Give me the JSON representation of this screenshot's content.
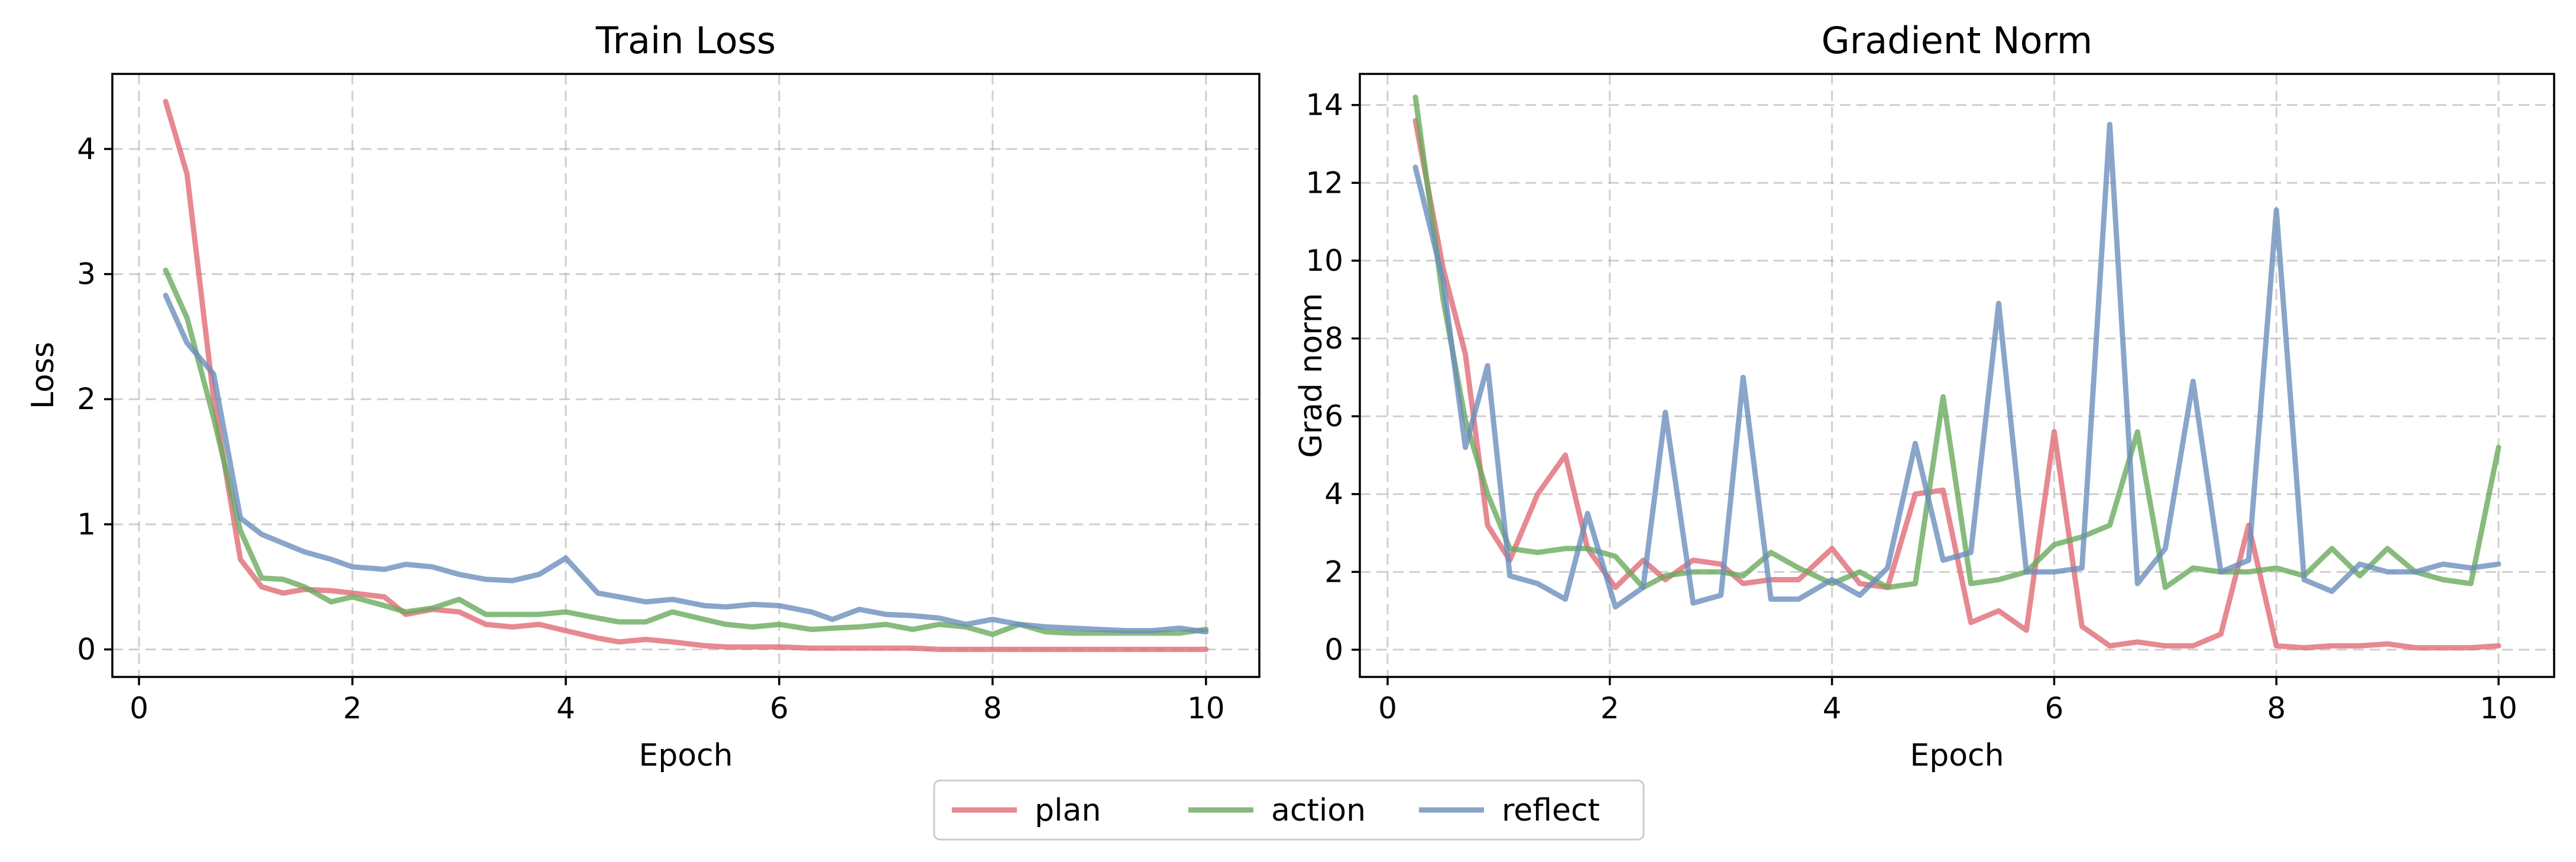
{
  "chart_data": [
    {
      "type": "line",
      "title": "Train Loss",
      "xlabel": "Epoch",
      "ylabel": "Loss",
      "xlim": [
        -0.25,
        10.5
      ],
      "ylim": [
        -0.22,
        4.6
      ],
      "xticks": [
        0,
        2,
        4,
        6,
        8,
        10
      ],
      "yticks": [
        0,
        1,
        2,
        3,
        4
      ],
      "grid": true,
      "x": [
        0.25,
        0.45,
        0.7,
        0.95,
        1.15,
        1.35,
        1.55,
        1.8,
        2.0,
        2.3,
        2.5,
        2.75,
        3.0,
        3.25,
        3.5,
        3.75,
        4.0,
        4.3,
        4.5,
        4.75,
        5.0,
        5.3,
        5.5,
        5.75,
        6.0,
        6.3,
        6.5,
        6.75,
        7.0,
        7.25,
        7.5,
        7.75,
        8.0,
        8.25,
        8.5,
        8.75,
        9.0,
        9.25,
        9.5,
        9.75,
        10.0
      ],
      "series": [
        {
          "name": "plan",
          "color": "#e06c75",
          "values": [
            4.38,
            3.8,
            2.0,
            0.72,
            0.5,
            0.45,
            0.48,
            0.47,
            0.45,
            0.42,
            0.28,
            0.32,
            0.3,
            0.2,
            0.18,
            0.2,
            0.15,
            0.09,
            0.06,
            0.08,
            0.06,
            0.03,
            0.02,
            0.02,
            0.02,
            0.01,
            0.01,
            0.01,
            0.01,
            0.01,
            0.0,
            0.0,
            0.0,
            0.0,
            0.0,
            0.0,
            0.0,
            0.0,
            0.0,
            0.0,
            0.0
          ]
        },
        {
          "name": "action",
          "color": "#6aaa5e",
          "values": [
            3.03,
            2.65,
            1.85,
            0.95,
            0.57,
            0.56,
            0.5,
            0.38,
            0.42,
            0.35,
            0.3,
            0.33,
            0.4,
            0.28,
            0.28,
            0.28,
            0.3,
            0.25,
            0.22,
            0.22,
            0.3,
            0.24,
            0.2,
            0.18,
            0.2,
            0.16,
            0.17,
            0.18,
            0.2,
            0.16,
            0.2,
            0.18,
            0.12,
            0.2,
            0.14,
            0.13,
            0.13,
            0.13,
            0.13,
            0.13,
            0.16
          ]
        },
        {
          "name": "reflect",
          "color": "#6b8fbb",
          "values": [
            2.83,
            2.45,
            2.2,
            1.05,
            0.92,
            0.85,
            0.78,
            0.72,
            0.66,
            0.64,
            0.68,
            0.66,
            0.6,
            0.56,
            0.55,
            0.6,
            0.73,
            0.45,
            0.42,
            0.38,
            0.4,
            0.35,
            0.34,
            0.36,
            0.35,
            0.3,
            0.24,
            0.32,
            0.28,
            0.27,
            0.25,
            0.2,
            0.24,
            0.2,
            0.18,
            0.17,
            0.16,
            0.15,
            0.15,
            0.17,
            0.14
          ]
        }
      ]
    },
    {
      "type": "line",
      "title": "Gradient Norm",
      "xlabel": "Epoch",
      "ylabel": "Grad norm",
      "xlim": [
        -0.25,
        10.5
      ],
      "ylim": [
        -0.7,
        14.8
      ],
      "xticks": [
        0,
        2,
        4,
        6,
        8,
        10
      ],
      "yticks": [
        0,
        2,
        4,
        6,
        8,
        10,
        12,
        14
      ],
      "grid": true,
      "x": [
        0.25,
        0.5,
        0.7,
        0.9,
        1.1,
        1.35,
        1.6,
        1.8,
        2.05,
        2.3,
        2.5,
        2.75,
        3.0,
        3.2,
        3.45,
        3.7,
        4.0,
        4.25,
        4.5,
        4.75,
        5.0,
        5.25,
        5.5,
        5.75,
        6.0,
        6.25,
        6.5,
        6.75,
        7.0,
        7.25,
        7.5,
        7.75,
        8.0,
        8.25,
        8.5,
        8.75,
        9.0,
        9.25,
        9.5,
        9.75,
        10.0
      ],
      "series": [
        {
          "name": "plan",
          "color": "#e06c75",
          "values": [
            13.6,
            9.8,
            7.6,
            3.2,
            2.3,
            4.0,
            5.0,
            2.6,
            1.6,
            2.3,
            1.8,
            2.3,
            2.2,
            1.7,
            1.8,
            1.8,
            2.6,
            1.7,
            1.6,
            4.0,
            4.1,
            0.7,
            1.0,
            0.5,
            5.6,
            0.6,
            0.1,
            0.2,
            0.1,
            0.1,
            0.4,
            3.2,
            0.1,
            0.05,
            0.1,
            0.1,
            0.15,
            0.05,
            0.05,
            0.05,
            0.1
          ]
        },
        {
          "name": "action",
          "color": "#6aaa5e",
          "values": [
            14.2,
            9.0,
            5.9,
            4.0,
            2.6,
            2.5,
            2.6,
            2.6,
            2.4,
            1.6,
            1.9,
            2.0,
            2.0,
            1.9,
            2.5,
            2.1,
            1.7,
            2.0,
            1.6,
            1.7,
            6.5,
            1.7,
            1.8,
            2.0,
            2.7,
            2.9,
            3.2,
            5.6,
            1.6,
            2.1,
            2.0,
            2.0,
            2.1,
            1.9,
            2.6,
            1.9,
            2.6,
            2.0,
            1.8,
            1.7,
            5.2
          ]
        },
        {
          "name": "reflect",
          "color": "#6b8fbb",
          "values": [
            12.4,
            9.5,
            5.2,
            7.3,
            1.9,
            1.7,
            1.3,
            3.5,
            1.1,
            1.6,
            6.1,
            1.2,
            1.4,
            7.0,
            1.3,
            1.3,
            1.8,
            1.4,
            2.1,
            5.3,
            2.3,
            2.5,
            8.9,
            2.0,
            2.0,
            2.1,
            13.5,
            1.7,
            2.6,
            6.9,
            2.0,
            2.3,
            11.3,
            1.8,
            1.5,
            2.2,
            2.0,
            2.0,
            2.2,
            2.1,
            2.2
          ]
        }
      ]
    }
  ],
  "legend": {
    "position": "bottom-center",
    "entries": [
      {
        "name": "plan",
        "color": "#e06c75"
      },
      {
        "name": "action",
        "color": "#6aaa5e"
      },
      {
        "name": "reflect",
        "color": "#6b8fbb"
      }
    ]
  }
}
